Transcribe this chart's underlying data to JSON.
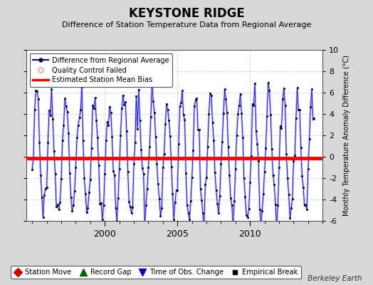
{
  "title": "KEYSTONE RIDGE",
  "subtitle": "Difference of Station Temperature Data from Regional Average",
  "ylabel_right": "Monthly Temperature Anomaly Difference (°C)",
  "bias_value": -0.1,
  "ylim": [
    -6,
    10
  ],
  "xlim": [
    1994.58,
    2015.0
  ],
  "yticks": [
    -6,
    -4,
    -2,
    0,
    2,
    4,
    6,
    8,
    10
  ],
  "line_color": "#aaaaff",
  "line_color2": "#0000cc",
  "marker_color": "#000000",
  "bias_color": "#ff0000",
  "background_color": "#d8d8d8",
  "plot_bg_color": "#ffffff",
  "berkeley_earth_text": "Berkeley Earth",
  "seed": 17,
  "amplitude": 5.5,
  "noise_scale": 0.8
}
